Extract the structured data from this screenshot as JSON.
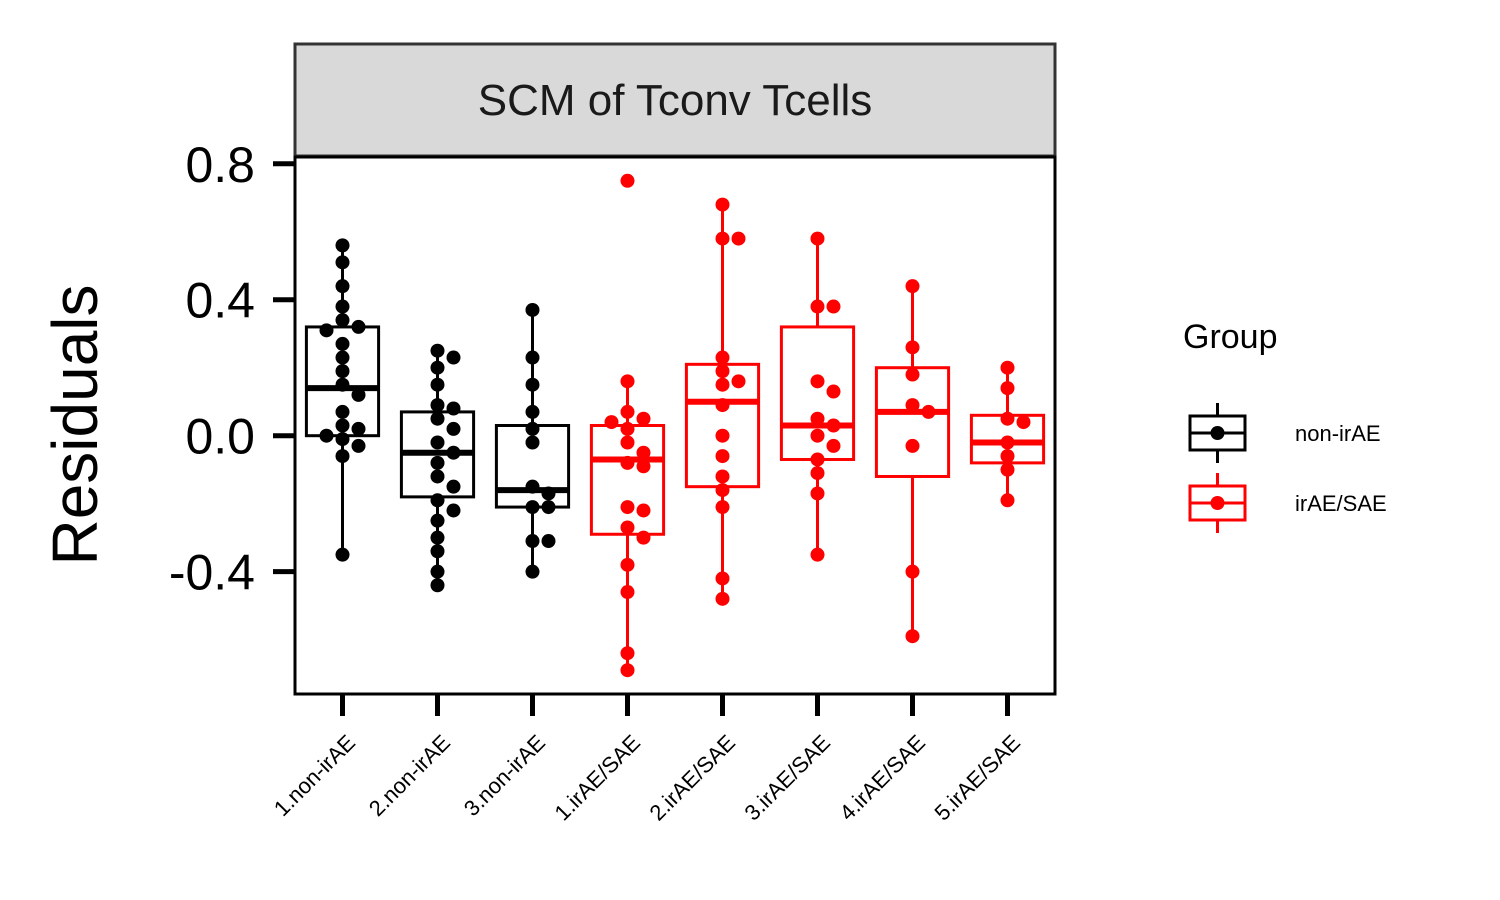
{
  "chart_data": {
    "type": "box",
    "facet_title": "SCM of Tconv Tcells",
    "ylabel": "Residuals",
    "xlabel": "",
    "ylim": [
      -0.76,
      0.82
    ],
    "yticks": [
      -0.4,
      0.0,
      0.4,
      0.8
    ],
    "ytick_labels": [
      "-0.4",
      "0.0",
      "0.4",
      "0.8"
    ],
    "legend": {
      "title": "Group",
      "placement": "right",
      "entries": [
        {
          "label": "non-irAE",
          "color": "#000000"
        },
        {
          "label": "irAE/SAE",
          "color": "#ff0000"
        }
      ]
    },
    "categories": [
      {
        "label": "1.non-irAE",
        "group": "non-irAE",
        "box": {
          "q1": 0.0,
          "median": 0.14,
          "q3": 0.32,
          "whisker_low": -0.35,
          "whisker_high": 0.56
        },
        "points": [
          0.56,
          0.51,
          0.44,
          0.38,
          0.34,
          0.32,
          0.31,
          0.27,
          0.23,
          0.19,
          0.15,
          0.12,
          0.07,
          0.03,
          0.02,
          0.0,
          -0.01,
          -0.03,
          -0.06,
          -0.35
        ]
      },
      {
        "label": "2.non-irAE",
        "group": "non-irAE",
        "box": {
          "q1": -0.18,
          "median": -0.05,
          "q3": 0.07,
          "whisker_low": -0.44,
          "whisker_high": 0.25
        },
        "points": [
          0.25,
          0.23,
          0.2,
          0.15,
          0.09,
          0.08,
          0.05,
          0.02,
          -0.02,
          -0.05,
          -0.08,
          -0.12,
          -0.15,
          -0.19,
          -0.22,
          -0.25,
          -0.3,
          -0.34,
          -0.4,
          -0.44
        ]
      },
      {
        "label": "3.non-irAE",
        "group": "non-irAE",
        "box": {
          "q1": -0.21,
          "median": -0.16,
          "q3": 0.03,
          "whisker_low": -0.4,
          "whisker_high": 0.37
        },
        "points": [
          0.37,
          0.23,
          0.15,
          0.07,
          0.02,
          -0.02,
          -0.15,
          -0.17,
          -0.21,
          -0.21,
          -0.31,
          -0.31,
          -0.4
        ]
      },
      {
        "label": "1.irAE/SAE",
        "group": "irAE/SAE",
        "box": {
          "q1": -0.29,
          "median": -0.07,
          "q3": 0.03,
          "whisker_low": -0.69,
          "whisker_high": 0.16
        },
        "points": [
          0.75,
          0.16,
          0.07,
          0.05,
          0.04,
          0.02,
          -0.02,
          -0.05,
          -0.08,
          -0.09,
          -0.21,
          -0.22,
          -0.27,
          -0.3,
          -0.38,
          -0.46,
          -0.64,
          -0.69
        ]
      },
      {
        "label": "2.irAE/SAE",
        "group": "irAE/SAE",
        "box": {
          "q1": -0.15,
          "median": 0.1,
          "q3": 0.21,
          "whisker_low": -0.48,
          "whisker_high": 0.68
        },
        "points": [
          0.68,
          0.58,
          0.58,
          0.23,
          0.19,
          0.16,
          0.15,
          0.09,
          0.0,
          -0.06,
          -0.12,
          -0.16,
          -0.21,
          -0.42,
          -0.48
        ]
      },
      {
        "label": "3.irAE/SAE",
        "group": "irAE/SAE",
        "box": {
          "q1": -0.07,
          "median": 0.03,
          "q3": 0.32,
          "whisker_low": -0.35,
          "whisker_high": 0.58
        },
        "points": [
          0.58,
          0.38,
          0.38,
          0.16,
          0.13,
          0.05,
          0.03,
          0.0,
          -0.03,
          -0.07,
          -0.11,
          -0.17,
          -0.35
        ]
      },
      {
        "label": "4.irAE/SAE",
        "group": "irAE/SAE",
        "box": {
          "q1": -0.12,
          "median": 0.07,
          "q3": 0.2,
          "whisker_low": -0.59,
          "whisker_high": 0.44
        },
        "points": [
          0.44,
          0.26,
          0.18,
          0.09,
          0.07,
          -0.03,
          -0.4,
          -0.59
        ]
      },
      {
        "label": "5.irAE/SAE",
        "group": "irAE/SAE",
        "box": {
          "q1": -0.08,
          "median": -0.02,
          "q3": 0.06,
          "whisker_low": -0.19,
          "whisker_high": 0.2
        },
        "points": [
          0.2,
          0.14,
          0.05,
          0.04,
          -0.02,
          -0.06,
          -0.1,
          -0.19
        ]
      }
    ]
  }
}
